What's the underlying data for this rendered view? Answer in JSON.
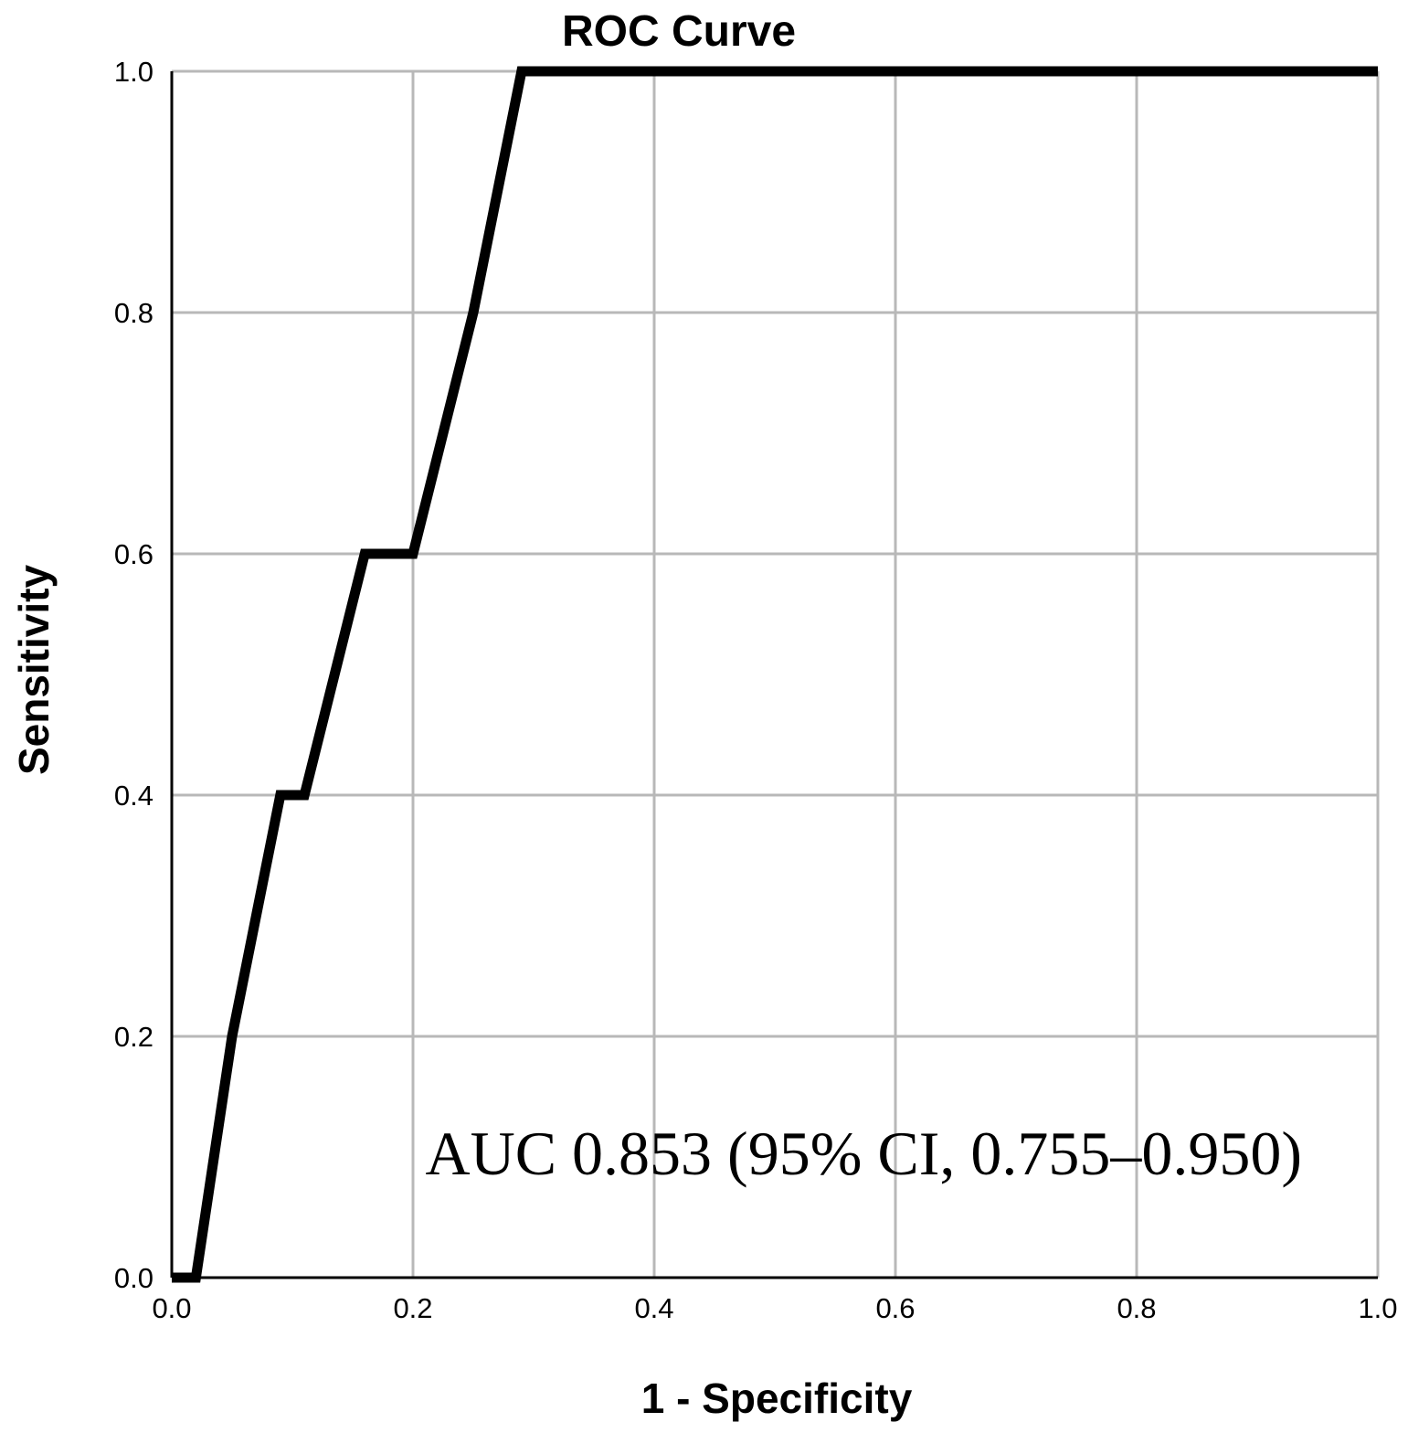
{
  "chart_data": {
    "type": "line",
    "title": "ROC Curve",
    "xlabel": "1 - Specificity",
    "ylabel": "Sensitivity",
    "xlim": [
      0,
      1
    ],
    "ylim": [
      0,
      1
    ],
    "x_ticks": [
      "0.0",
      "0.2",
      "0.4",
      "0.6",
      "0.8",
      "1.0"
    ],
    "y_ticks": [
      "0.0",
      "0.2",
      "0.4",
      "0.6",
      "0.8",
      "1.0"
    ],
    "grid": true,
    "legend": "none",
    "annotation": "AUC 0.853 (95% CI, 0.755–0.950)",
    "line_color": "#000000",
    "grid_color": "#b8b8b8",
    "series": [
      {
        "points": [
          [
            0.0,
            0.0
          ],
          [
            0.02,
            0.0
          ],
          [
            0.05,
            0.2
          ],
          [
            0.07,
            0.3
          ],
          [
            0.09,
            0.4
          ],
          [
            0.11,
            0.4
          ],
          [
            0.16,
            0.6
          ],
          [
            0.2,
            0.6
          ],
          [
            0.25,
            0.8
          ],
          [
            0.29,
            1.0
          ],
          [
            1.0,
            1.0
          ]
        ]
      }
    ]
  }
}
